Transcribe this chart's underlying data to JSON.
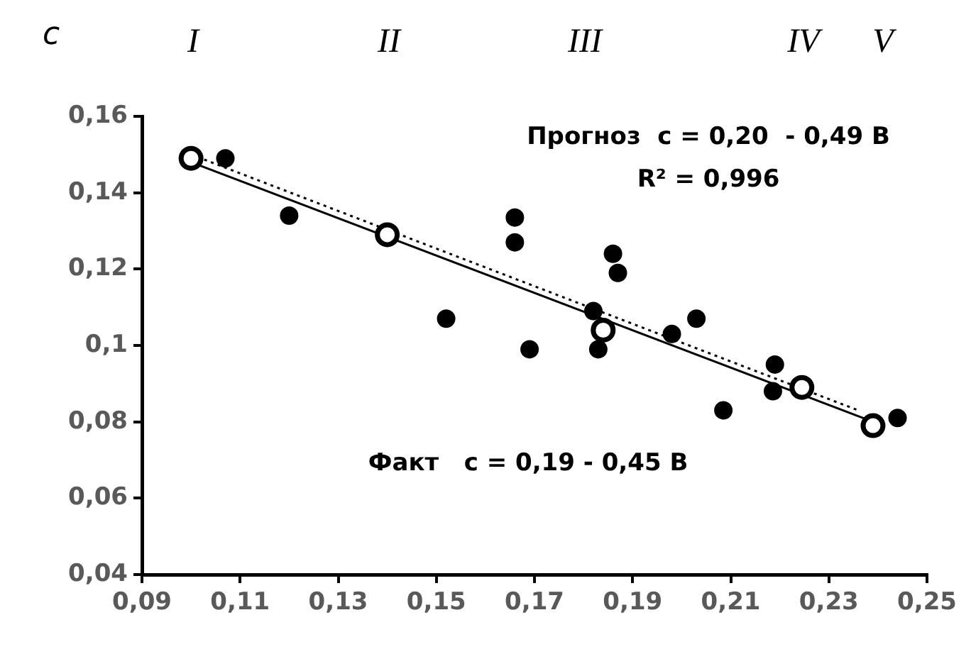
{
  "chart_data": {
    "type": "scatter",
    "ylabel": "c",
    "xlim": [
      0.09,
      0.25
    ],
    "ylim": [
      0.04,
      0.16
    ],
    "xticks": [
      {
        "value": 0.09,
        "label": "0,09"
      },
      {
        "value": 0.11,
        "label": "0,11"
      },
      {
        "value": 0.13,
        "label": "0,13"
      },
      {
        "value": 0.15,
        "label": "0,15"
      },
      {
        "value": 0.17,
        "label": "0,17"
      },
      {
        "value": 0.19,
        "label": "0,19"
      },
      {
        "value": 0.21,
        "label": "0,21"
      },
      {
        "value": 0.23,
        "label": "0,23"
      },
      {
        "value": 0.25,
        "label": "0,25"
      }
    ],
    "yticks": [
      {
        "value": 0.04,
        "label": "0,04"
      },
      {
        "value": 0.06,
        "label": "0,06"
      },
      {
        "value": 0.08,
        "label": "0,08"
      },
      {
        "value": 0.1,
        "label": "0,1"
      },
      {
        "value": 0.12,
        "label": "0,12"
      },
      {
        "value": 0.14,
        "label": "0,14"
      },
      {
        "value": 0.16,
        "label": "0,16"
      }
    ],
    "grid": false,
    "legend": false,
    "marker": "circle",
    "series": [
      {
        "type": "line",
        "color": "#000000",
        "line_style": "solid",
        "marker": "none",
        "x": [
          0.1,
          0.239
        ],
        "values": [
          0.148,
          0.08
        ]
      },
      {
        "type": "line",
        "color": "#000000",
        "line_style": "dotted",
        "marker": "none",
        "x": [
          0.1,
          0.236
        ],
        "values": [
          0.15,
          0.083
        ]
      },
      {
        "color": "#000000",
        "x": [
          0.107,
          0.12,
          0.152,
          0.166,
          0.166,
          0.169,
          0.182,
          0.183,
          0.186,
          0.187,
          0.198,
          0.203,
          0.2085,
          0.219,
          0.2186,
          0.244
        ],
        "values": [
          0.149,
          0.134,
          0.107,
          0.1335,
          0.127,
          0.099,
          0.109,
          0.099,
          0.124,
          0.119,
          0.103,
          0.107,
          0.083,
          0.095,
          0.088,
          0.081
        ]
      },
      {
        "color": "#000000",
        "x": [
          0.1,
          0.14,
          0.184,
          0.2245,
          0.239
        ],
        "values": [
          0.149,
          0.129,
          0.104,
          0.089,
          0.079
        ]
      }
    ],
    "annotations": [
      "I",
      "II",
      "III",
      "IV",
      "V",
      "Прогноз  c = 0,20  - 0,49 B",
      "R² = 0,996",
      "Факт   c = 0,19 - 0,45 B"
    ]
  }
}
